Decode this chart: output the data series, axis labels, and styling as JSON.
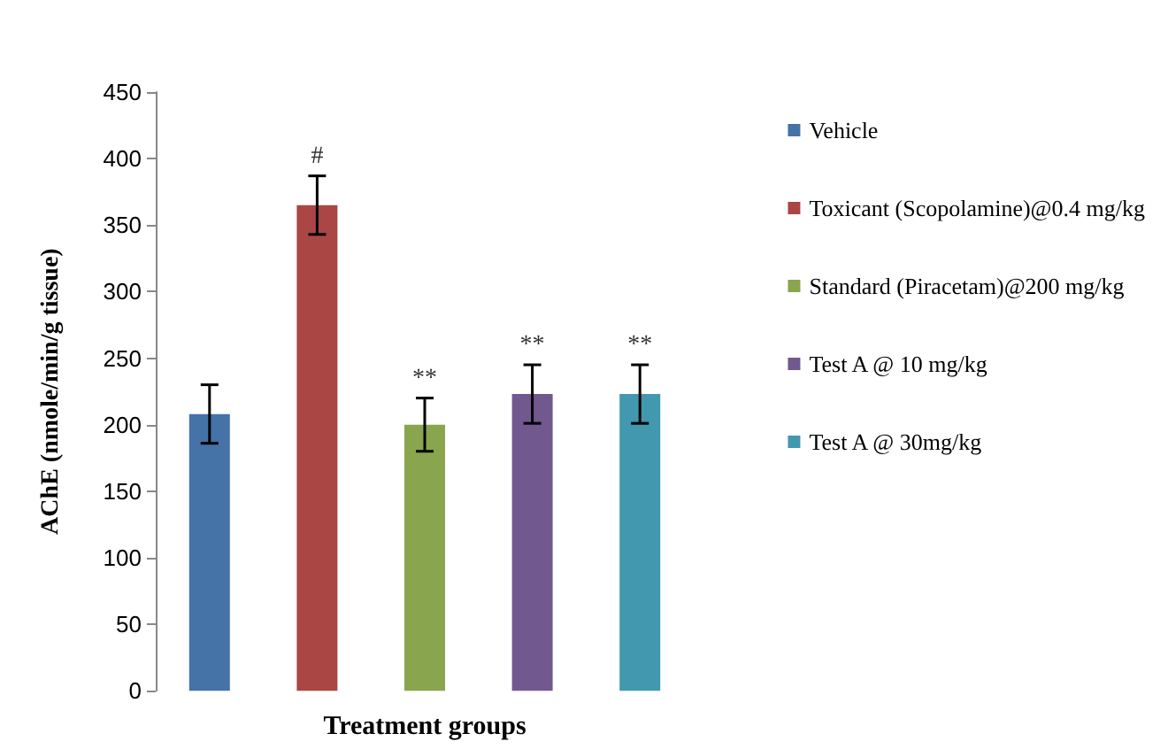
{
  "chart_data": {
    "type": "bar",
    "ylabel": "AChE (nmole/min/g tissue)",
    "xlabel": "Treatment groups",
    "categories": [
      null,
      null,
      null,
      null,
      null
    ],
    "stacked": true,
    "series": [
      {
        "name": "Vehicle",
        "color": "#4572a7",
        "values": [
          208,
          null,
          null,
          null,
          null
        ],
        "errors": [
          22,
          null,
          null,
          null,
          null
        ]
      },
      {
        "name": "Toxicant (Scopolamine)@0.4 mg/kg",
        "color": "#aa4643",
        "values": [
          null,
          365,
          null,
          null,
          null
        ],
        "errors": [
          null,
          22,
          null,
          null,
          null
        ]
      },
      {
        "name": "Standard (Piracetam)@200 mg/kg",
        "color": "#89a54e",
        "values": [
          null,
          null,
          200,
          null,
          null
        ],
        "errors": [
          null,
          null,
          20,
          null,
          null
        ]
      },
      {
        "name": "Test A @ 10 mg/kg",
        "color": "#71588f",
        "values": [
          null,
          null,
          null,
          223,
          null
        ],
        "errors": [
          null,
          null,
          null,
          22,
          null
        ]
      },
      {
        "name": "Test A @ 30mg/kg",
        "color": "#4198af",
        "values": [
          null,
          null,
          null,
          null,
          223
        ],
        "errors": [
          null,
          null,
          null,
          null,
          22
        ]
      }
    ],
    "ylim": [
      0,
      450
    ],
    "yticks": [
      0,
      50,
      100,
      150,
      200,
      250,
      300,
      350,
      400,
      450
    ],
    "grid": false,
    "legend": "right",
    "annotations": [
      "#",
      "**",
      "**",
      "**"
    ]
  }
}
